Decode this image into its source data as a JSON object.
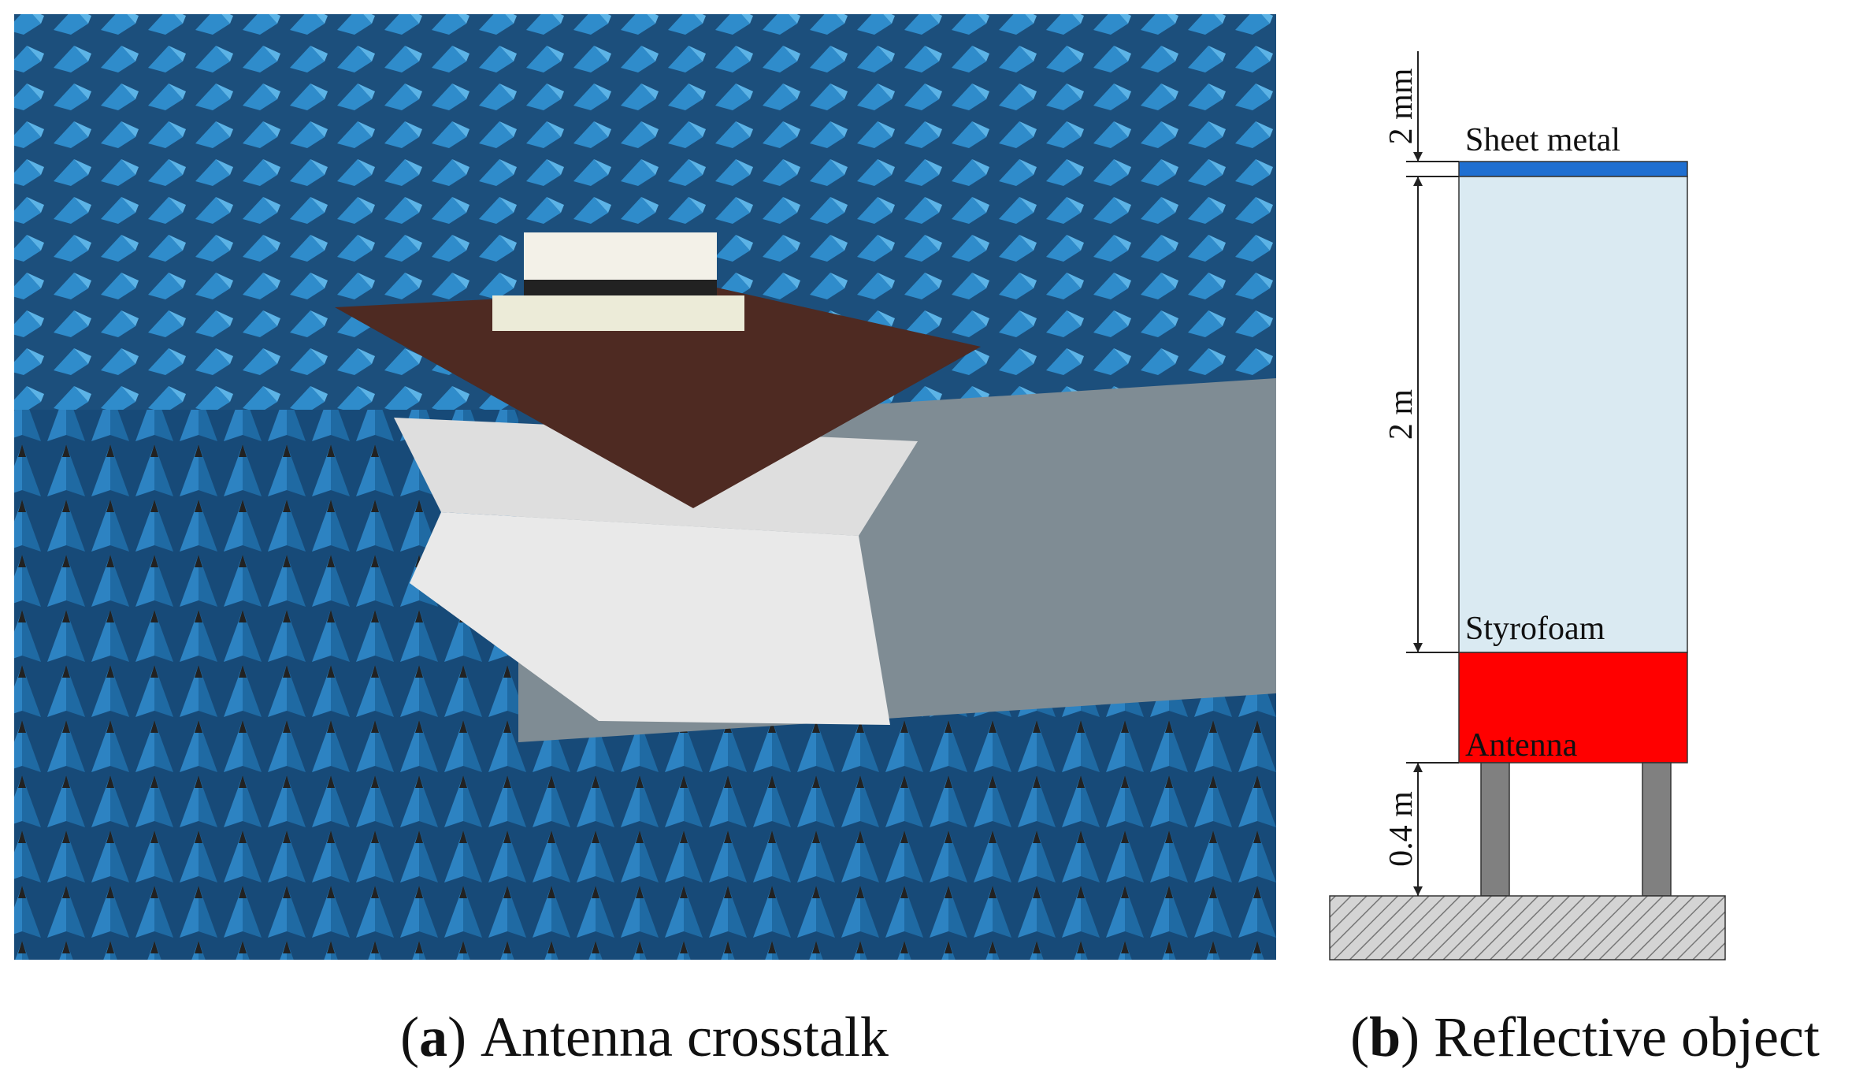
{
  "figure": {
    "panels": [
      {
        "prefix": "(",
        "letter": "a",
        "suffix": ")",
        "caption": "Antenna crosstalk"
      },
      {
        "prefix": "(",
        "letter": "b",
        "suffix": ")",
        "caption": "Reflective object"
      }
    ],
    "diagram": {
      "layers": {
        "sheet_metal": "Sheet metal",
        "styrofoam": "Styrofoam",
        "antenna": "Antenna"
      },
      "dimensions": {
        "sheet": "2 mm",
        "styrofoam": "2 m",
        "legs": "0.4 m"
      }
    }
  }
}
